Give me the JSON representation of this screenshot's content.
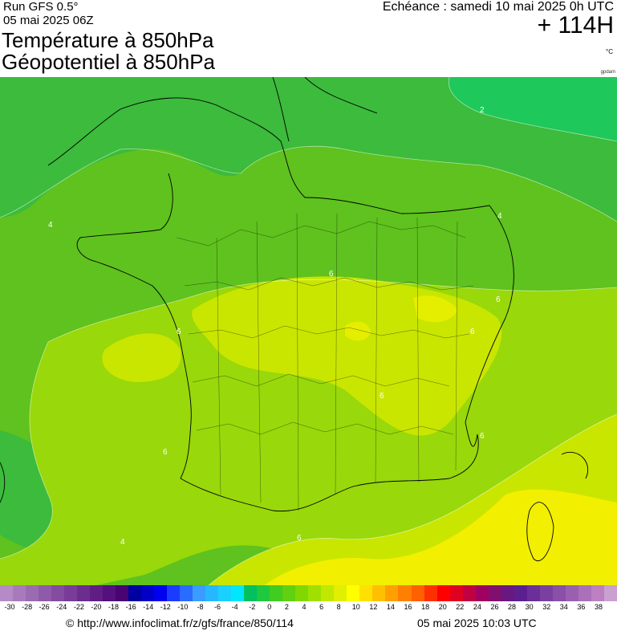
{
  "header": {
    "run": "Run GFS 0.5°",
    "run_date": "05 mai 2025 06Z",
    "title_line1": "Température à 850hPa",
    "title_line2": "Géopotentiel à 850hPa",
    "echeance": "Echéance : samedi 10 mai 2025 0h UTC",
    "offset": "+ 114H",
    "unit": "°C",
    "credit": "gpdam"
  },
  "scale": {
    "colors": [
      "#b48bc4",
      "#a77bbb",
      "#9b6bb2",
      "#8f5ba9",
      "#844ca0",
      "#783d97",
      "#6c2e8e",
      "#601e85",
      "#54107c",
      "#480473",
      "#0000a0",
      "#0000c8",
      "#0000f0",
      "#1a3cff",
      "#2a6cff",
      "#3a9cff",
      "#26b8ff",
      "#1ad0ff",
      "#00e6ff",
      "#00c060",
      "#20c840",
      "#40cc20",
      "#60d010",
      "#80d800",
      "#a0e000",
      "#c0e800",
      "#e0f000",
      "#ffff00",
      "#ffe000",
      "#ffc000",
      "#ffa000",
      "#ff8000",
      "#ff6000",
      "#ff3000",
      "#ff0000",
      "#e00020",
      "#c00040",
      "#a00060",
      "#801070",
      "#6a1880",
      "#5a2090",
      "#6a3098",
      "#7a40a0",
      "#8a50a8",
      "#9a60b0",
      "#aa70b8",
      "#ba80c0",
      "#caa0d0"
    ],
    "ticks": [
      "-30",
      "-28",
      "-26",
      "-24",
      "-22",
      "-20",
      "-18",
      "-16",
      "-14",
      "-12",
      "-10",
      "-8",
      "-6",
      "-4",
      "-2",
      "0",
      "2",
      "4",
      "6",
      "8",
      "10",
      "12",
      "14",
      "16",
      "18",
      "20",
      "22",
      "24",
      "26",
      "28",
      "30",
      "32",
      "34",
      "36",
      "38"
    ]
  },
  "map": {
    "contour_labels": [
      "2",
      "4",
      "6",
      "6",
      "6",
      "6",
      "6",
      "6",
      "6",
      "4",
      "6",
      "4"
    ]
  },
  "footer": {
    "url": "© http://www.infoclimat.fr/z/gfs/france/850/114",
    "generated": "05 mai 2025 10:03 UTC"
  }
}
